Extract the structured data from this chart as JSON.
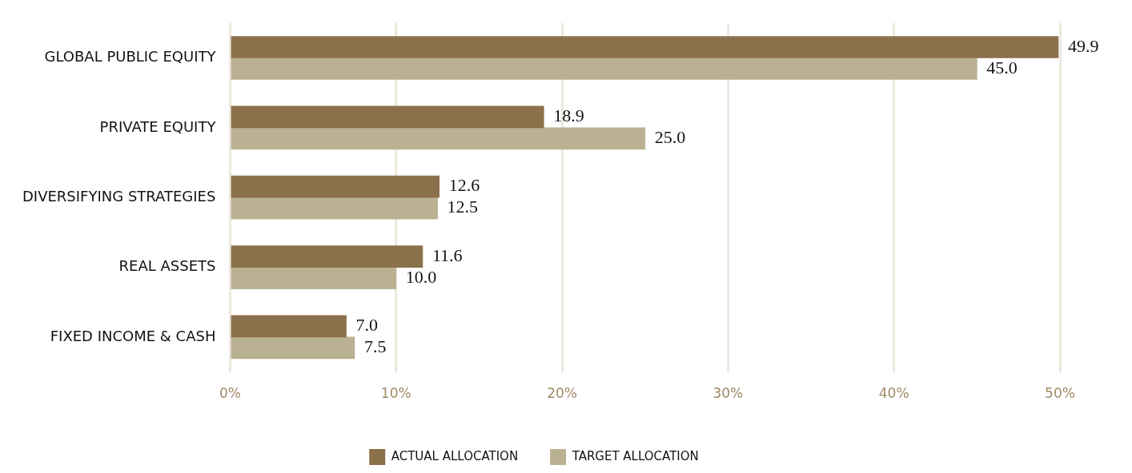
{
  "chart_data": {
    "type": "bar",
    "orientation": "horizontal",
    "categories": [
      "GLOBAL PUBLIC EQUITY",
      "PRIVATE EQUITY",
      "DIVERSIFYING STRATEGIES",
      "REAL ASSETS",
      "FIXED INCOME & CASH"
    ],
    "series": [
      {
        "name": "ACTUAL ALLOCATION",
        "color": "#8b714b",
        "values": [
          49.9,
          18.9,
          12.6,
          11.6,
          7.0
        ],
        "value_labels": [
          "49.9",
          "18.9",
          "12.6",
          "11.6",
          "7.0"
        ]
      },
      {
        "name": "TARGET ALLOCATION",
        "color": "#bab193",
        "values": [
          45.0,
          25.0,
          12.5,
          10.0,
          7.5
        ],
        "value_labels": [
          "45.0",
          "25.0",
          "12.5",
          "10.0",
          "7.5"
        ]
      }
    ],
    "xlim": [
      0,
      50
    ],
    "xticks": [
      {
        "value": 0,
        "label": "0%"
      },
      {
        "value": 10,
        "label": "10%"
      },
      {
        "value": 20,
        "label": "20%"
      },
      {
        "value": 30,
        "label": "30%"
      },
      {
        "value": 40,
        "label": "40%"
      },
      {
        "value": 50,
        "label": "50%"
      }
    ],
    "grid": "x",
    "legend": "bottom"
  }
}
